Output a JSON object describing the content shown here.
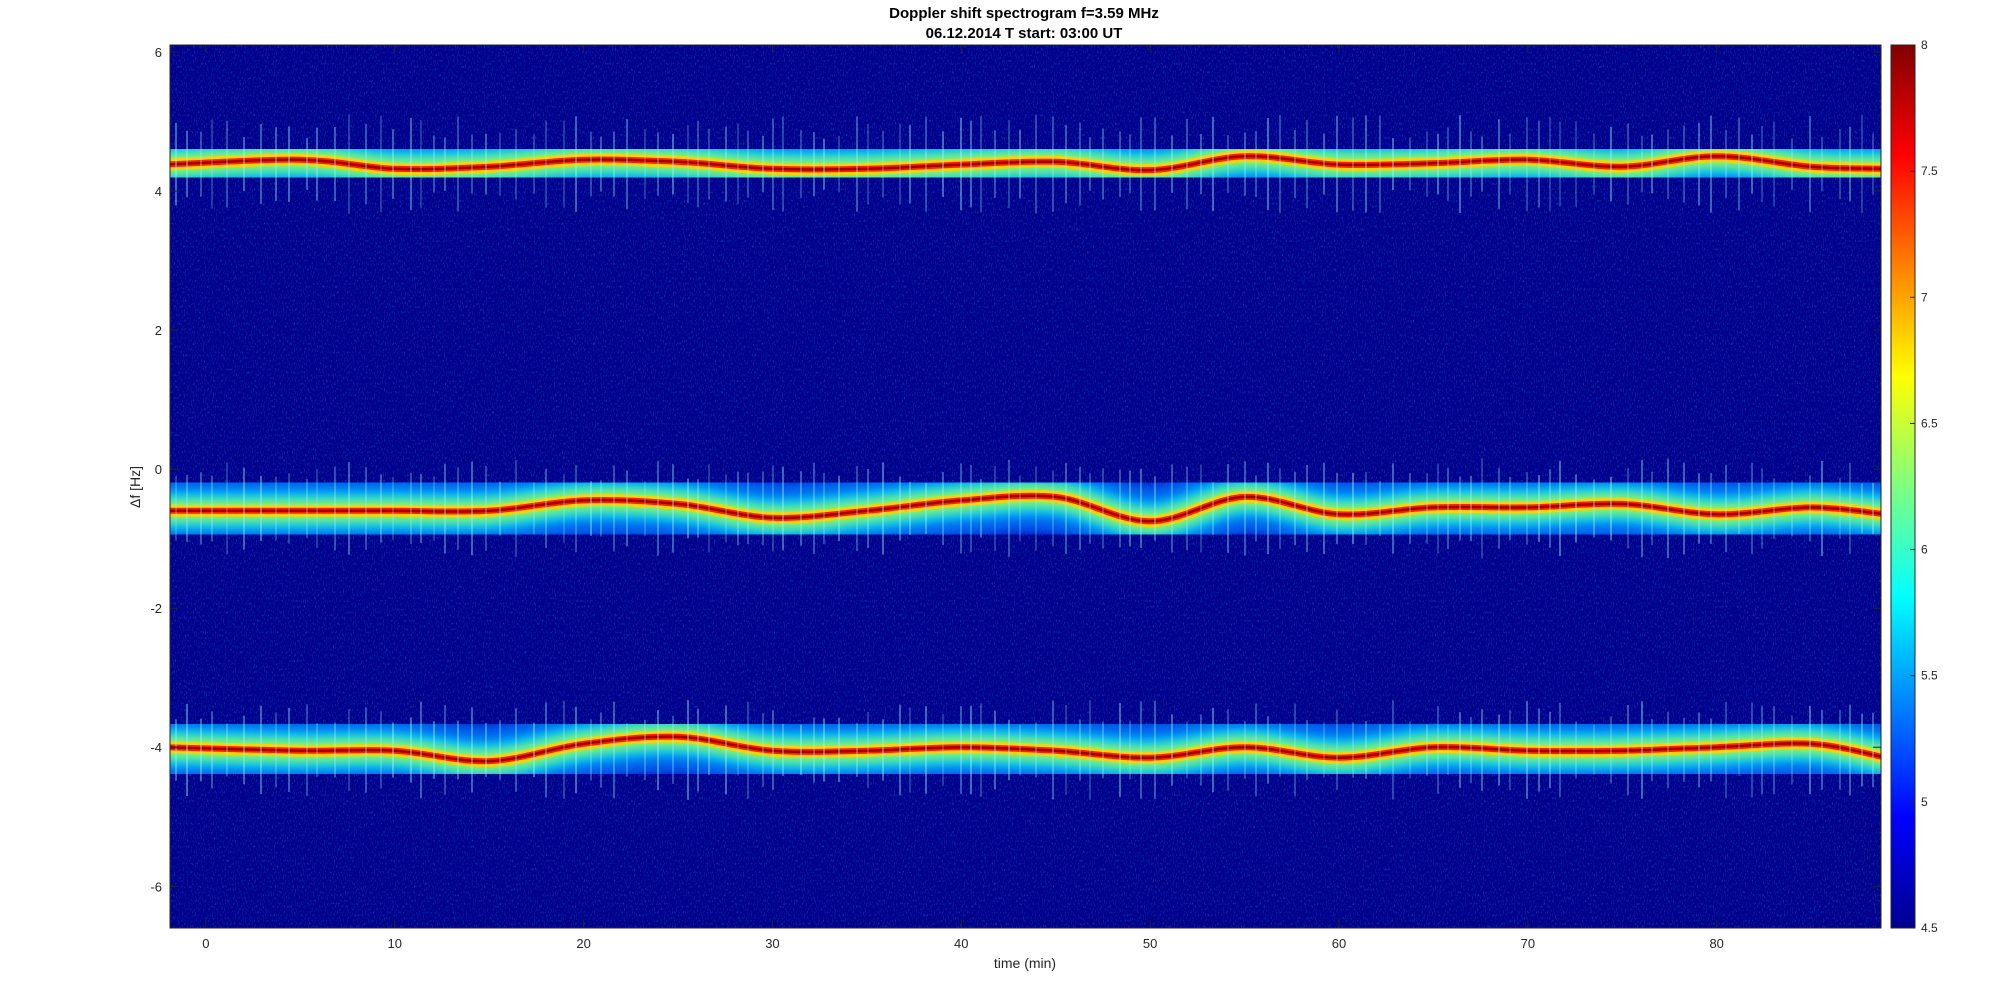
{
  "chart_data": {
    "type": "heatmap",
    "title": "Doppler shift spectrogram f=3.59 MHz",
    "subtitle": "06.12.2014   T start: 03:00 UT",
    "xlabel": "time (min)",
    "ylabel": "Δf [Hz]",
    "xlim": [
      -1.9,
      88.7
    ],
    "ylim": [
      -6.6,
      6.1
    ],
    "xticks": [
      0,
      10,
      20,
      30,
      40,
      50,
      60,
      70,
      80
    ],
    "yticks": [
      6,
      4,
      2,
      0,
      -2,
      -4,
      -6
    ],
    "colorbar": {
      "colormap": "jet",
      "clim": [
        4.5,
        8
      ],
      "ticks": [
        8,
        7.5,
        7,
        6.5,
        6,
        5.5,
        5,
        4.5
      ]
    },
    "traces": [
      {
        "time": [
          0,
          5,
          10,
          15,
          20,
          25,
          30,
          35,
          40,
          45,
          50,
          55,
          60,
          65,
          70,
          75,
          80,
          85,
          88.7
        ],
        "df": [
          4.38,
          4.45,
          4.32,
          4.35,
          4.45,
          4.42,
          4.32,
          4.32,
          4.38,
          4.42,
          4.3,
          4.5,
          4.38,
          4.4,
          4.45,
          4.35,
          4.5,
          4.35,
          4.32
        ]
      },
      {
        "time": [
          0,
          5,
          10,
          15,
          20,
          25,
          30,
          35,
          40,
          45,
          50,
          55,
          60,
          65,
          70,
          75,
          80,
          85,
          88.7
        ],
        "df": [
          -0.6,
          -0.6,
          -0.6,
          -0.6,
          -0.45,
          -0.5,
          -0.7,
          -0.6,
          -0.45,
          -0.4,
          -0.75,
          -0.4,
          -0.65,
          -0.55,
          -0.55,
          -0.5,
          -0.65,
          -0.55,
          -0.65
        ]
      },
      {
        "time": [
          0,
          5,
          10,
          15,
          20,
          25,
          30,
          35,
          40,
          45,
          50,
          55,
          60,
          65,
          70,
          75,
          80,
          85,
          88.7
        ],
        "df": [
          -4.0,
          -4.05,
          -4.05,
          -4.2,
          -3.95,
          -3.85,
          -4.05,
          -4.05,
          -4.0,
          -4.05,
          -4.15,
          -4.0,
          -4.15,
          -4.0,
          -4.05,
          -4.05,
          -4.0,
          -3.95,
          -4.15
        ]
      }
    ]
  }
}
